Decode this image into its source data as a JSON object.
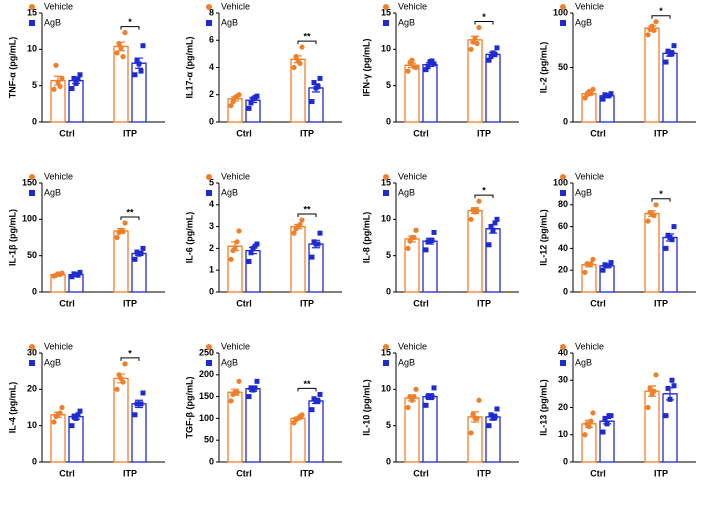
{
  "chart_data": [
    {
      "type": "bar",
      "ylabel": "TNF-α (pg/mL)",
      "categories": [
        "Ctrl",
        "ITP"
      ],
      "ylim": [
        0,
        15
      ],
      "yticks": [
        0,
        5,
        10,
        15
      ],
      "annotations": [
        {
          "category": "ITP",
          "text": "*"
        }
      ],
      "series": [
        {
          "name": "Vehicle",
          "color": "#f07f2a",
          "values": [
            5.7,
            10.4
          ],
          "errors": [
            0.6,
            0.6
          ],
          "points": [
            [
              4.5,
              5.5,
              6.0,
              7.8,
              4.9
            ],
            [
              9.5,
              10.2,
              12.3,
              10.8,
              9.0
            ]
          ]
        },
        {
          "name": "AgB",
          "color": "#1f2bd1",
          "values": [
            5.7,
            8.1
          ],
          "errors": [
            0.4,
            0.7
          ],
          "points": [
            [
              4.6,
              5.3,
              6.5,
              6.0,
              5.9
            ],
            [
              6.5,
              8.0,
              10.5,
              8.5,
              7.0
            ]
          ]
        }
      ]
    },
    {
      "type": "bar",
      "ylabel": "IL17-α (pg/mL)",
      "categories": [
        "Ctrl",
        "ITP"
      ],
      "ylim": [
        0,
        8
      ],
      "yticks": [
        0,
        2,
        4,
        6,
        8
      ],
      "annotations": [
        {
          "category": "ITP",
          "text": "**"
        }
      ],
      "series": [
        {
          "name": "Vehicle",
          "color": "#f07f2a",
          "values": [
            1.7,
            4.6
          ],
          "errors": [
            0.15,
            0.25
          ],
          "points": [
            [
              1.2,
              1.8,
              2.0,
              1.5,
              1.9
            ],
            [
              4.0,
              4.5,
              5.5,
              4.8,
              4.3
            ]
          ]
        },
        {
          "name": "AgB",
          "color": "#1f2bd1",
          "values": [
            1.6,
            2.5
          ],
          "errors": [
            0.17,
            0.3
          ],
          "points": [
            [
              1.0,
              1.7,
              1.9,
              1.4,
              1.8
            ],
            [
              1.5,
              2.5,
              3.2,
              2.9,
              2.6
            ]
          ]
        }
      ]
    },
    {
      "type": "bar",
      "ylabel": "IFN-γ (pg/mL)",
      "categories": [
        "Ctrl",
        "ITP"
      ],
      "ylim": [
        0,
        15
      ],
      "yticks": [
        0,
        5,
        10,
        15
      ],
      "annotations": [
        {
          "category": "ITP",
          "text": "*"
        }
      ],
      "series": [
        {
          "name": "Vehicle",
          "color": "#f07f2a",
          "values": [
            7.8,
            11.3
          ],
          "errors": [
            0.3,
            0.5
          ],
          "points": [
            [
              7.0,
              8.5,
              7.5,
              8.2,
              7.6
            ],
            [
              10.0,
              11.5,
              13.0,
              11.0,
              10.8
            ]
          ]
        },
        {
          "name": "AgB",
          "color": "#1f2bd1",
          "values": [
            7.9,
            9.3
          ],
          "errors": [
            0.25,
            0.3
          ],
          "points": [
            [
              7.2,
              8.3,
              8.0,
              7.6,
              8.4
            ],
            [
              8.5,
              9.5,
              10.2,
              9.0,
              9.3
            ]
          ]
        }
      ]
    },
    {
      "type": "bar",
      "ylabel": "IL-2 (pg/mL)",
      "categories": [
        "Ctrl",
        "ITP"
      ],
      "ylim": [
        0,
        100
      ],
      "yticks": [
        0,
        50,
        100
      ],
      "annotations": [
        {
          "category": "ITP",
          "text": "*"
        }
      ],
      "series": [
        {
          "name": "Vehicle",
          "color": "#f07f2a",
          "values": [
            26,
            86
          ],
          "errors": [
            1.4,
            2.0
          ],
          "points": [
            [
              22,
              28,
              30,
              25,
              26
            ],
            [
              80,
              88,
              92,
              85,
              84
            ]
          ]
        },
        {
          "name": "AgB",
          "color": "#1f2bd1",
          "values": [
            24,
            63
          ],
          "errors": [
            0.8,
            2.5
          ],
          "points": [
            [
              21,
              24,
              26,
              25,
              24
            ],
            [
              55,
              62,
              70,
              65,
              63
            ]
          ]
        }
      ]
    },
    {
      "type": "bar",
      "ylabel": "IL-1β (pg/mL)",
      "categories": [
        "Ctrl",
        "ITP"
      ],
      "ylim": [
        0,
        150
      ],
      "yticks": [
        0,
        50,
        100,
        150
      ],
      "annotations": [
        {
          "category": "ITP",
          "text": "**"
        }
      ],
      "series": [
        {
          "name": "Vehicle",
          "color": "#f07f2a",
          "values": [
            24,
            84
          ],
          "errors": [
            0.7,
            3.2
          ],
          "points": [
            [
              22,
              25,
              26,
              23,
              24
            ],
            [
              75,
              85,
              95,
              82,
              83
            ]
          ]
        },
        {
          "name": "AgB",
          "color": "#1f2bd1",
          "values": [
            24,
            53
          ],
          "errors": [
            1.0,
            2.5
          ],
          "points": [
            [
              21,
              24,
              27,
              25,
              23
            ],
            [
              45,
              52,
              60,
              55,
              53
            ]
          ]
        }
      ]
    },
    {
      "type": "bar",
      "ylabel": "IL-6 (pg/mL)",
      "categories": [
        "Ctrl",
        "ITP"
      ],
      "ylim": [
        0,
        5
      ],
      "yticks": [
        0,
        1,
        2,
        3,
        4,
        5
      ],
      "annotations": [
        {
          "category": "ITP",
          "text": "**"
        }
      ],
      "series": [
        {
          "name": "Vehicle",
          "color": "#f07f2a",
          "values": [
            2.1,
            3.0
          ],
          "errors": [
            0.2,
            0.1
          ],
          "points": [
            [
              1.5,
              2.0,
              2.8,
              1.9,
              2.3
            ],
            [
              2.7,
              3.0,
              3.3,
              2.9,
              3.1
            ]
          ]
        },
        {
          "name": "AgB",
          "color": "#1f2bd1",
          "values": [
            1.9,
            2.2
          ],
          "errors": [
            0.14,
            0.17
          ],
          "points": [
            [
              1.4,
              2.0,
              2.2,
              1.8,
              2.1
            ],
            [
              1.6,
              2.2,
              2.7,
              2.3,
              2.2
            ]
          ]
        }
      ]
    },
    {
      "type": "bar",
      "ylabel": "IL-8 (pg/mL)",
      "categories": [
        "Ctrl",
        "ITP"
      ],
      "ylim": [
        0,
        15
      ],
      "yticks": [
        0,
        5,
        10,
        15
      ],
      "annotations": [
        {
          "category": "ITP",
          "text": "*"
        }
      ],
      "series": [
        {
          "name": "Vehicle",
          "color": "#f07f2a",
          "values": [
            7.3,
            11.2
          ],
          "errors": [
            0.4,
            0.4
          ],
          "points": [
            [
              6.0,
              7.5,
              8.5,
              7.0,
              7.5
            ],
            [
              10.0,
              11.0,
              12.5,
              11.3,
              11.2
            ]
          ]
        },
        {
          "name": "AgB",
          "color": "#1f2bd1",
          "values": [
            7.0,
            8.7
          ],
          "errors": [
            0.4,
            0.6
          ],
          "points": [
            [
              5.8,
              7.0,
              8.2,
              6.9,
              7.1
            ],
            [
              6.5,
              8.5,
              10.0,
              9.0,
              9.5
            ]
          ]
        }
      ]
    },
    {
      "type": "bar",
      "ylabel": "IL-12 (pg/mL)",
      "categories": [
        "Ctrl",
        "ITP"
      ],
      "ylim": [
        0,
        100
      ],
      "yticks": [
        0,
        20,
        40,
        60,
        80,
        100
      ],
      "annotations": [
        {
          "category": "ITP",
          "text": "*"
        }
      ],
      "series": [
        {
          "name": "Vehicle",
          "color": "#f07f2a",
          "values": [
            25,
            72
          ],
          "errors": [
            2.0,
            2.5
          ],
          "points": [
            [
              18,
              25,
              30,
              26,
              26
            ],
            [
              65,
              72,
              80,
              73,
              70
            ]
          ]
        },
        {
          "name": "AgB",
          "color": "#1f2bd1",
          "values": [
            24,
            50
          ],
          "errors": [
            1.0,
            3.2
          ],
          "points": [
            [
              20,
              24,
              27,
              25,
              24
            ],
            [
              40,
              50,
              60,
              52,
              48
            ]
          ]
        }
      ]
    },
    {
      "type": "bar",
      "ylabel": "IL-4 (pg/mL)",
      "categories": [
        "Ctrl",
        "ITP"
      ],
      "ylim": [
        0,
        30
      ],
      "yticks": [
        0,
        10,
        20,
        30
      ],
      "annotations": [
        {
          "category": "ITP",
          "text": "*"
        }
      ],
      "series": [
        {
          "name": "Vehicle",
          "color": "#f07f2a",
          "values": [
            13,
            23
          ],
          "errors": [
            0.7,
            1.2
          ],
          "points": [
            [
              11,
              13,
              15,
              12.5,
              13.5
            ],
            [
              20,
              23,
              27,
              24,
              22
            ]
          ]
        },
        {
          "name": "AgB",
          "color": "#1f2bd1",
          "values": [
            12.5,
            16
          ],
          "errors": [
            0.7,
            1.0
          ],
          "points": [
            [
              10,
              12,
              14,
              12.5,
              13
            ],
            [
              13,
              16,
              19,
              16,
              16
            ]
          ]
        }
      ]
    },
    {
      "type": "bar",
      "ylabel": "TGF-β (pg/mL)",
      "categories": [
        "Ctrl",
        "ITP"
      ],
      "ylim": [
        0,
        250
      ],
      "yticks": [
        0,
        50,
        100,
        150,
        200,
        250
      ],
      "annotations": [
        {
          "category": "ITP",
          "text": "**"
        }
      ],
      "series": [
        {
          "name": "Vehicle",
          "color": "#f07f2a",
          "values": [
            160,
            100
          ],
          "errors": [
            7,
            3
          ],
          " points": null,
          "points": [
            [
              140,
              160,
              185,
              155,
              160
            ],
            [
              90,
              100,
              108,
              97,
              105
            ]
          ]
        },
        {
          "name": "AgB",
          "color": "#1f2bd1",
          "values": [
            168,
            140
          ],
          "errors": [
            6,
            6
          ],
          "points": [
            [
              150,
              165,
              185,
              170,
              170
            ],
            [
              120,
              140,
              155,
              145,
              140
            ]
          ]
        }
      ]
    },
    {
      "type": "bar",
      "ylabel": "IL-10 (pg/mL)",
      "categories": [
        "Ctrl",
        "ITP"
      ],
      "ylim": [
        0,
        15
      ],
      "yticks": [
        0,
        5,
        10,
        15
      ],
      "annotations": [],
      "series": [
        {
          "name": "Vehicle",
          "color": "#f07f2a",
          "values": [
            8.8,
            6.2
          ],
          "errors": [
            0.4,
            0.7
          ],
          "points": [
            [
              7.5,
              8.5,
              10.0,
              9.0,
              9.0
            ],
            [
              4.0,
              6.0,
              8.5,
              6.5,
              6.0
            ]
          ]
        },
        {
          "name": "AgB",
          "color": "#1f2bd1",
          "values": [
            9.0,
            6.2
          ],
          "errors": [
            0.4,
            0.4
          ],
          "points": [
            [
              7.8,
              9.0,
              10.2,
              9.0,
              9.0
            ],
            [
              5.0,
              6.0,
              7.3,
              6.5,
              6.2
            ]
          ]
        }
      ]
    },
    {
      "type": "bar",
      "ylabel": "IL-13 (pg/mL)",
      "categories": [
        "Ctrl",
        "ITP"
      ],
      "ylim": [
        0,
        40
      ],
      "yticks": [
        0,
        10,
        20,
        30,
        40
      ],
      "annotations": [],
      "series": [
        {
          "name": "Vehicle",
          "color": "#f07f2a",
          "values": [
            14,
            26
          ],
          "errors": [
            1.3,
            1.9
          ],
          "points": [
            [
              10,
              13,
              18,
              14,
              15
            ],
            [
              20,
              25,
              32,
              27,
              26
            ]
          ]
        },
        {
          "name": "AgB",
          "color": "#1f2bd1",
          "values": [
            15,
            25
          ],
          "errors": [
            1.0,
            2.2
          ],
          "points": [
            [
              11,
              14,
              17,
              16,
              17
            ],
            [
              17,
              23,
              28,
              27,
              30
            ]
          ]
        }
      ]
    }
  ]
}
